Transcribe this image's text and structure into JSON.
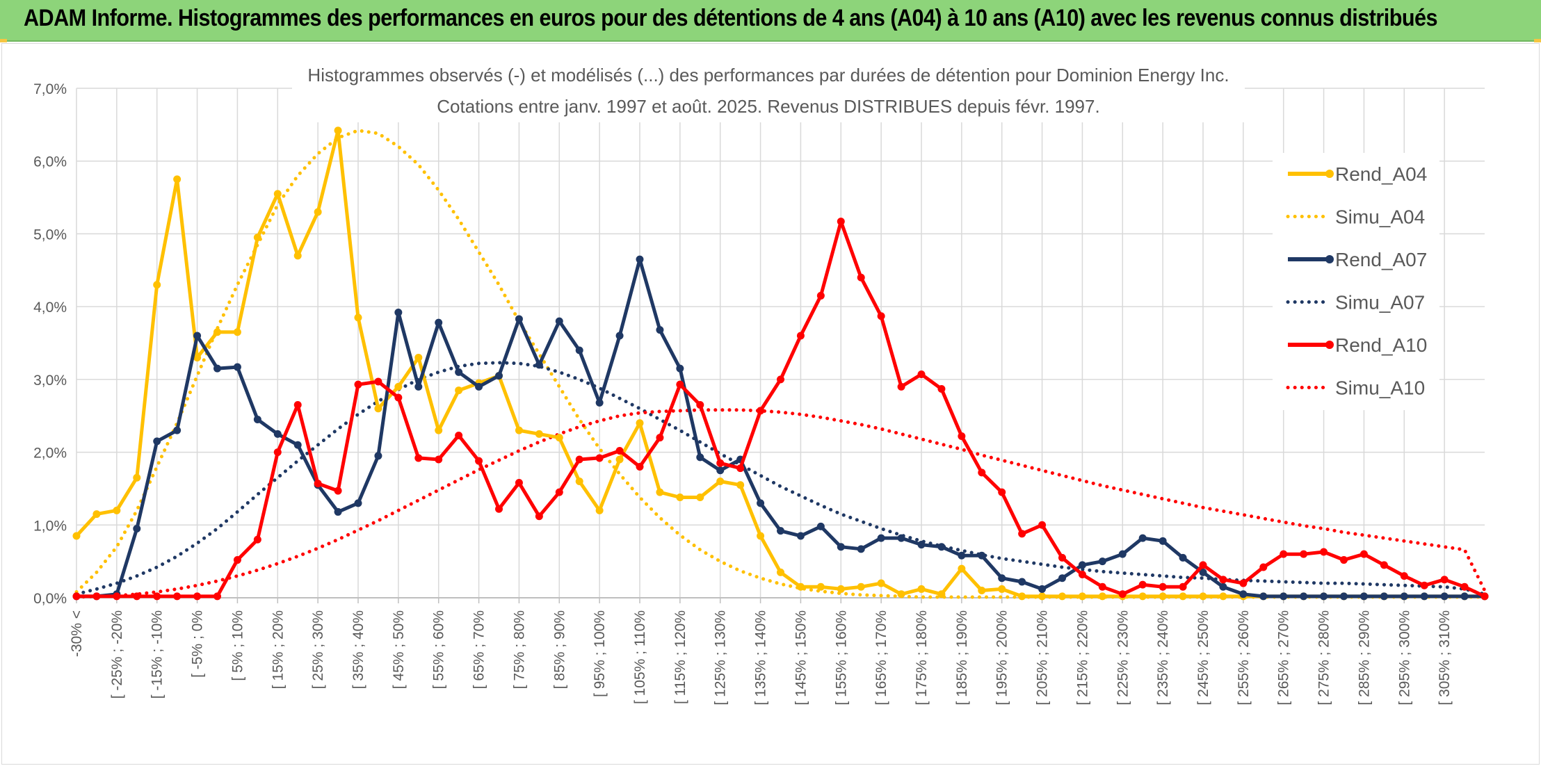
{
  "page": {
    "title": "ADAM Informe. Histogrammes des performances en euros pour des détentions de 4 ans (A04) à 10 ans (A10) avec les revenus connus distribués"
  },
  "chart_data": {
    "type": "line",
    "title": "Histogrammes observés (-) et modélisés (...) des performances par durées de détention pour Dominion Energy Inc.",
    "subtitle": "Cotations entre janv. 1997 et août. 2025. Revenus DISTRIBUES depuis févr. 1997.",
    "ylim": [
      0,
      7
    ],
    "y_ticks": [
      "0,0%",
      "1,0%",
      "2,0%",
      "3,0%",
      "4,0%",
      "5,0%",
      "6,0%",
      "7,0%"
    ],
    "grid": true,
    "legend_position": "right",
    "x_labels": [
      "-30% <",
      "[ -25% ; -20%",
      "[ -15% ; -10%",
      "[ -5% ; 0%",
      "[ 5% ; 10%",
      "[ 15% ; 20%",
      "[ 25% ; 30%",
      "[ 35% ; 40%",
      "[ 45% ; 50%",
      "[ 55% ; 60%",
      "[ 65% ; 70%",
      "[ 75% ; 80%",
      "[ 85% ; 90%",
      "[ 95% ; 100%",
      "[ 105% ; 110%",
      "[ 115% ; 120%",
      "[ 125% ; 130%",
      "[ 135% ; 140%",
      "[ 145% ; 150%",
      "[ 155% ; 160%",
      "[ 165% ; 170%",
      "[ 175% ; 180%",
      "[ 185% ; 190%",
      "[ 195% ; 200%",
      "[ 205% ; 210%",
      "[ 215% ; 220%",
      "[ 225% ; 230%",
      "[ 235% ; 240%",
      "[ 245% ; 250%",
      "[ 255% ; 260%",
      "[ 265% ; 270%",
      "[ 275% ; 280%",
      "[ 285% ; 290%",
      "[ 295% ; 300%",
      "[ 305% ; 310%"
    ],
    "series": [
      {
        "name": "Rend_A04",
        "style": "solid",
        "color": "#ffc000",
        "values": [
          0.85,
          1.15,
          1.2,
          1.65,
          4.3,
          5.75,
          3.3,
          3.65,
          3.65,
          4.95,
          5.55,
          4.7,
          5.3,
          6.42,
          3.85,
          2.6,
          2.9,
          3.3,
          2.3,
          2.85,
          2.95,
          3.05,
          2.3,
          2.25,
          2.2,
          1.6,
          1.2,
          1.9,
          2.4,
          1.45,
          1.38,
          1.38,
          1.6,
          1.55,
          0.85,
          0.35,
          0.15,
          0.15,
          0.12,
          0.15,
          0.2,
          0.05,
          0.12,
          0.05,
          0.4,
          0.1,
          0.12,
          0.02,
          0.02,
          0.02,
          0.02,
          0.02,
          0.02,
          0.02,
          0.02,
          0.02,
          0.02,
          0.02,
          0.02,
          0.02,
          0.02,
          0.02,
          0.02,
          0.02,
          0.02,
          0.02,
          0.02,
          0.02,
          0.02,
          0.02,
          0.02
        ]
      },
      {
        "name": "Simu_A04",
        "style": "dotted",
        "color": "#ffc000",
        "values": [
          0.08,
          0.35,
          0.7,
          1.2,
          1.8,
          2.4,
          3.05,
          3.7,
          4.3,
          4.85,
          5.4,
          5.8,
          6.1,
          6.32,
          6.42,
          6.38,
          6.2,
          5.95,
          5.6,
          5.2,
          4.75,
          4.3,
          3.8,
          3.35,
          2.9,
          2.45,
          2.05,
          1.7,
          1.38,
          1.1,
          0.86,
          0.66,
          0.5,
          0.37,
          0.27,
          0.19,
          0.13,
          0.09,
          0.06,
          0.04,
          0.03,
          0.02,
          0.01,
          0.01,
          0.01,
          0.01,
          0.01,
          0.01,
          0.01,
          0.01,
          0.01,
          0.01,
          0.01,
          0.01,
          0.01,
          0.01,
          0.01,
          0.01,
          0.01,
          0.01,
          0.01,
          0.01,
          0.01,
          0.01,
          0.01,
          0.01,
          0.01,
          0.01,
          0.01,
          0.01,
          0.01
        ]
      },
      {
        "name": "Rend_A07",
        "style": "solid",
        "color": "#1f3864",
        "values": [
          0.02,
          0.02,
          0.05,
          0.95,
          2.15,
          2.3,
          3.6,
          3.15,
          3.17,
          2.45,
          2.25,
          2.1,
          1.55,
          1.18,
          1.3,
          1.95,
          3.92,
          2.9,
          3.78,
          3.1,
          2.9,
          3.05,
          3.83,
          3.2,
          3.8,
          3.4,
          2.68,
          3.6,
          4.65,
          3.68,
          3.15,
          1.93,
          1.75,
          1.9,
          1.3,
          0.92,
          0.85,
          0.98,
          0.7,
          0.67,
          0.82,
          0.82,
          0.73,
          0.7,
          0.58,
          0.58,
          0.27,
          0.22,
          0.12,
          0.27,
          0.45,
          0.5,
          0.6,
          0.82,
          0.78,
          0.55,
          0.35,
          0.15,
          0.05,
          0.02,
          0.02,
          0.02,
          0.02,
          0.02,
          0.02,
          0.02,
          0.02,
          0.02,
          0.02,
          0.02,
          0.02
        ]
      },
      {
        "name": "Simu_A07",
        "style": "dotted",
        "color": "#1f3864",
        "values": [
          0.05,
          0.12,
          0.2,
          0.3,
          0.42,
          0.57,
          0.75,
          0.95,
          1.18,
          1.42,
          1.65,
          1.88,
          2.1,
          2.32,
          2.52,
          2.7,
          2.86,
          3.0,
          3.1,
          3.18,
          3.22,
          3.23,
          3.22,
          3.18,
          3.1,
          3.0,
          2.88,
          2.74,
          2.6,
          2.45,
          2.3,
          2.14,
          1.98,
          1.83,
          1.68,
          1.53,
          1.4,
          1.27,
          1.15,
          1.05,
          0.95,
          0.86,
          0.78,
          0.71,
          0.65,
          0.59,
          0.54,
          0.5,
          0.46,
          0.42,
          0.39,
          0.36,
          0.34,
          0.32,
          0.3,
          0.28,
          0.27,
          0.25,
          0.24,
          0.23,
          0.22,
          0.21,
          0.2,
          0.2,
          0.19,
          0.18,
          0.17,
          0.16,
          0.15,
          0.12,
          0.05
        ]
      },
      {
        "name": "Rend_A10",
        "style": "solid",
        "color": "#ff0000",
        "values": [
          0.02,
          0.02,
          0.02,
          0.02,
          0.02,
          0.02,
          0.02,
          0.02,
          0.52,
          0.8,
          2.0,
          2.65,
          1.57,
          1.47,
          2.93,
          2.97,
          2.75,
          1.92,
          1.9,
          2.23,
          1.88,
          1.22,
          1.58,
          1.12,
          1.45,
          1.9,
          1.92,
          2.02,
          1.8,
          2.2,
          2.93,
          2.65,
          1.85,
          1.78,
          2.57,
          3.0,
          3.6,
          4.15,
          5.17,
          4.4,
          3.87,
          2.9,
          3.07,
          2.87,
          2.22,
          1.72,
          1.45,
          0.88,
          1.0,
          0.55,
          0.32,
          0.15,
          0.05,
          0.18,
          0.15,
          0.15,
          0.45,
          0.25,
          0.2,
          0.42,
          0.6,
          0.6,
          0.63,
          0.52,
          0.6,
          0.45,
          0.3,
          0.17,
          0.25,
          0.15,
          0.02
        ]
      },
      {
        "name": "Simu_A10",
        "style": "dotted",
        "color": "#ff0000",
        "values": [
          0.01,
          0.02,
          0.03,
          0.05,
          0.08,
          0.12,
          0.17,
          0.23,
          0.3,
          0.38,
          0.47,
          0.57,
          0.68,
          0.8,
          0.93,
          1.06,
          1.2,
          1.34,
          1.48,
          1.62,
          1.76,
          1.89,
          2.02,
          2.14,
          2.25,
          2.35,
          2.43,
          2.5,
          2.54,
          2.56,
          2.57,
          2.58,
          2.58,
          2.58,
          2.57,
          2.55,
          2.52,
          2.48,
          2.43,
          2.38,
          2.32,
          2.25,
          2.18,
          2.11,
          2.04,
          1.96,
          1.89,
          1.82,
          1.75,
          1.68,
          1.61,
          1.54,
          1.48,
          1.42,
          1.36,
          1.3,
          1.24,
          1.19,
          1.14,
          1.09,
          1.04,
          0.99,
          0.95,
          0.9,
          0.86,
          0.82,
          0.78,
          0.74,
          0.7,
          0.66,
          0.1
        ]
      }
    ]
  }
}
